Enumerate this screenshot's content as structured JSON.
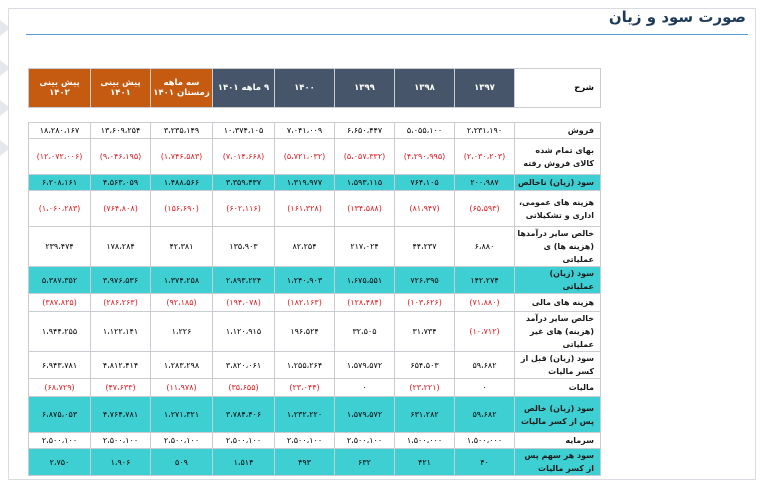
{
  "page_title": "صورت سود و زیان",
  "table": {
    "desc_header": "شرح",
    "columns": [
      {
        "label": "۱۳۹۷",
        "type": "year"
      },
      {
        "label": "۱۳۹۸",
        "type": "year"
      },
      {
        "label": "۱۳۹۹",
        "type": "year"
      },
      {
        "label": "۱۴۰۰",
        "type": "year"
      },
      {
        "label": "۹ ماهه ۱۴۰۱",
        "type": "year"
      },
      {
        "label": "سه ماهه زمستان ۱۴۰۱",
        "type": "forecast"
      },
      {
        "label": "پیش بینی ۱۴۰۱",
        "type": "forecast"
      },
      {
        "label": "پیش بینی ۱۴۰۲",
        "type": "forecast"
      }
    ],
    "rows": [
      {
        "label": "فروش",
        "h": 16,
        "teal": false,
        "values": [
          "۲،۲۳۱،۱۹۰",
          "۵،۰۵۵،۱۰۰",
          "۶،۶۵۰،۴۴۷",
          "۷،۰۴۱،۰۰۹",
          "۱۰،۳۷۴،۱۰۵",
          "۳،۲۳۵،۱۴۹",
          "۱۳،۶۰۹،۲۵۴",
          "۱۸،۲۸۰،۱۶۷"
        ]
      },
      {
        "label": "بهای تمام شده کالای فروش رفته",
        "h": 36,
        "teal": false,
        "values": [
          "(۲،۰۳۰،۲۰۳)",
          "(۴،۲۹۰،۹۹۵)",
          "(۵،۰۵۷،۳۳۲)",
          "(۵،۷۲۱،۰۳۲)",
          "(۷،۰۱۴،۶۶۸)",
          "(۱،۷۴۶،۵۸۳)",
          "(۹،۰۴۶،۱۹۵)",
          "(۱۲،۰۷۲،۰۰۶)"
        ]
      },
      {
        "label": "سود (زیان) ناخالص",
        "h": 16,
        "teal": true,
        "values": [
          "۲۰۰،۹۸۷",
          "۷۶۴،۱۰۵",
          "۱،۵۹۳،۱۱۵",
          "۱،۳۱۹،۹۷۷",
          "۳،۳۵۹،۴۳۷",
          "۱،۴۸۸،۵۶۶",
          "۴،۵۶۳،۰۵۹",
          "۶،۲۰۸،۱۶۱"
        ]
      },
      {
        "label": "هزینه های عمومی، اداری و تشکیلاتی",
        "h": 36,
        "teal": false,
        "values": [
          "(۶۵،۵۹۳)",
          "(۸۱،۹۴۷)",
          "(۱۳۴،۵۸۸)",
          "(۱۶۱،۳۲۸)",
          "(۶۰۲،۱۱۶)",
          "(۱۵۶،۶۹۰)",
          "(۷۶۴،۸۰۸)",
          "(۱،۰۶۰،۲۸۳)"
        ]
      },
      {
        "label": "خالص سایر درآمدها (هزینه ها) ی عملیاتی",
        "h": 36,
        "teal": false,
        "values": [
          "۶،۸۸۰",
          "۴۴،۲۳۷",
          "۲۱۷،۰۲۴",
          "۸۲،۲۵۴",
          "۱۳۵،۹۰۳",
          "۴۲،۳۸۱",
          "۱۷۸،۲۸۴",
          "۲۳۹،۴۷۴"
        ]
      },
      {
        "label": "سود (زیان) عملیاتی",
        "h": 16,
        "teal": true,
        "values": [
          "۱۴۲،۲۷۴",
          "۷۲۶،۳۹۵",
          "۱،۶۷۵،۵۵۱",
          "۱،۲۴۰،۹۰۳",
          "۲،۸۹۳،۲۲۴",
          "۱،۳۷۴،۲۵۸",
          "۳،۹۷۶،۵۳۶",
          "۵،۳۸۷،۳۵۲"
        ]
      },
      {
        "label": "هزینه های مالی",
        "h": 18,
        "teal": false,
        "values": [
          "(۷۱،۸۸۰)",
          "(۱۰۳،۶۲۶)",
          "(۱۲۸،۴۸۴)",
          "(۱۸۲،۱۶۳)",
          "(۱۹۴،۰۷۸)",
          "(۹۲،۱۸۵)",
          "(۲۸۶،۲۶۳)",
          "(۳۸۷،۸۲۵)"
        ]
      },
      {
        "label": "خالص سایر درآمد (هزینه) های غیر عملیاتی",
        "h": 36,
        "teal": false,
        "values": [
          "(۱۰،۷۱۲)",
          "۳۱،۷۳۴",
          "۳۲،۵۰۵",
          "۱۹۶،۵۲۴",
          "۱،۱۲۰،۹۱۵",
          "۱،۲۲۶",
          "۱،۱۲۲،۱۴۱",
          "۱،۹۴۴،۲۵۵"
        ]
      },
      {
        "label": "سود (زیان) قبل از کسر مالیات",
        "h": 16,
        "teal": false,
        "values": [
          "۵۹،۶۸۲",
          "۶۵۴،۵۰۳",
          "۱،۵۷۹،۵۷۲",
          "۱،۲۵۵،۲۶۴",
          "۳،۸۲۰،۰۶۱",
          "۱،۲۸۳،۲۹۸",
          "۴،۸۱۲،۴۱۴",
          "۶،۹۴۳،۷۸۱"
        ]
      },
      {
        "label": "مالیات",
        "h": 18,
        "teal": false,
        "values": [
          "۰",
          "(۲۳،۲۲۱)",
          "۰",
          "(۲۳،۰۴۴)",
          "(۳۵،۶۵۵)",
          "(۱۱،۹۷۸)",
          "(۴۷،۶۳۳)",
          "(۶۸،۷۲۹)"
        ]
      },
      {
        "label": "سود (زیان) خالص پس از کسر مالیات",
        "h": 36,
        "teal": true,
        "values": [
          "۵۹،۶۸۲",
          "۶۳۱،۲۸۲",
          "۱،۵۷۹،۵۷۲",
          "۱،۲۳۲،۲۲۰",
          "۳،۷۸۴،۴۰۶",
          "۱،۲۷۱،۳۲۱",
          "۴،۷۶۴،۷۸۱",
          "۶،۸۷۵،۰۵۳"
        ]
      },
      {
        "label": "سرمایه",
        "h": 16,
        "teal": false,
        "values": [
          "۱،۵۰۰،۰۰۰",
          "۱،۵۰۰،۰۰۰",
          "۲،۵۰۰،۱۰۰",
          "۲،۵۰۰،۱۰۰",
          "۲،۵۰۰،۱۰۰",
          "۲،۵۰۰،۱۰۰",
          "۲،۵۰۰،۱۰۰",
          "۲،۵۰۰،۱۰۰"
        ]
      },
      {
        "label": "سود هر سهم پس از کسر مالیات",
        "h": 18,
        "teal": true,
        "values": [
          "۴۰",
          "۴۲۱",
          "۶۳۲",
          "۴۹۳",
          "۱،۵۱۴",
          "۵۰۹",
          "۱،۹۰۶",
          "۲،۷۵۰"
        ]
      }
    ]
  }
}
